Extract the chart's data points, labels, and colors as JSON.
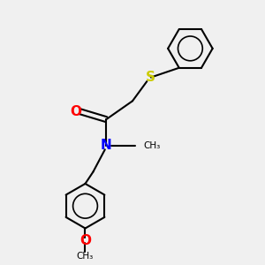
{
  "background_color": "#f0f0f0",
  "bond_color": "#000000",
  "atom_colors": {
    "O": "#ff0000",
    "N": "#0000ff",
    "S": "#cccc00",
    "C": "#000000"
  },
  "figsize": [
    3.0,
    3.0
  ],
  "dpi": 100
}
